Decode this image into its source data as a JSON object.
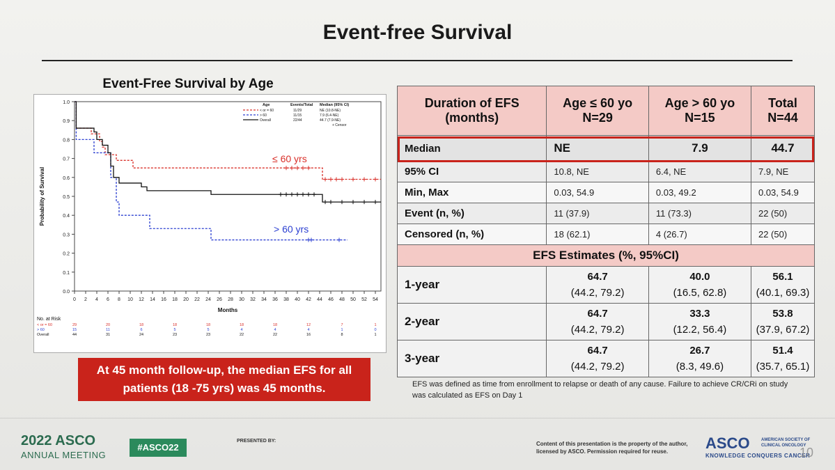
{
  "slide": {
    "title": "Event-free Survival",
    "chart_title": "Event-Free Survival by Age",
    "callout": "At 45 month follow-up, the median EFS for all patients (18 -75 yrs) was 45 months.",
    "footnote": "EFS was defined as time from enrollment to relapse or death of any cause. Failure to achieve CR/CRi on study was calculated as EFS on Day 1"
  },
  "table": {
    "headers": [
      "Duration of EFS (months)",
      "Age ≤ 60 yo N=29",
      "Age > 60 yo N=15",
      "Total N=44"
    ],
    "median": {
      "label": "Median",
      "v1": "NE",
      "v2": "7.9",
      "v3": "44.7"
    },
    "rows": [
      {
        "label": "95% CI",
        "v1": "10.8, NE",
        "v2": "6.4, NE",
        "v3": "7.9, NE"
      },
      {
        "label": "Min, Max",
        "v1": "0.03, 54.9",
        "v2": "0.03, 49.2",
        "v3": "0.03, 54.9"
      },
      {
        "label": "Event (n, %)",
        "v1": "11 (37.9)",
        "v2": "11 (73.3)",
        "v3": "22 (50)"
      },
      {
        "label": "Censored (n, %)",
        "v1": "18 (62.1)",
        "v2": "4 (26.7)",
        "v3": "22 (50)"
      }
    ],
    "estimates_header": "EFS Estimates (%, 95%CI)",
    "estimates": [
      {
        "label": "1-year",
        "v1": "64.7",
        "c1": "(44.2, 79.2)",
        "v2": "40.0",
        "c2": "(16.5, 62.8)",
        "v3": "56.1",
        "c3": "(40.1, 69.3)"
      },
      {
        "label": "2-year",
        "v1": "64.7",
        "c1": "(44.2, 79.2)",
        "v2": "33.3",
        "c2": "(12.2, 56.4)",
        "v3": "53.8",
        "c3": "(37.9, 67.2)"
      },
      {
        "label": "3-year",
        "v1": "64.7",
        "c1": "(44.2, 79.2)",
        "v2": "26.7",
        "c2": "(8.3, 49.6)",
        "v3": "51.4",
        "c3": "(35.7, 65.1)"
      }
    ]
  },
  "footer": {
    "year": "2022 ASCO",
    "meeting": "ANNUAL MEETING",
    "hashtag": "#ASCO22",
    "presented_by": "PRESENTED BY:",
    "content_note": "Content of this presentation is the property of the author, licensed by ASCO. Permission required for reuse.",
    "logo": "ASCO",
    "society": "AMERICAN SOCIETY OF CLINICAL ONCOLOGY",
    "tagline": "KNOWLEDGE CONQUERS CANCER",
    "page": "10"
  },
  "chart_data": {
    "type": "line",
    "title": "Event-Free Survival by Age",
    "xlabel": "Months",
    "ylabel": "Probability of Survival",
    "xlim": [
      0,
      55
    ],
    "ylim": [
      0,
      1
    ],
    "x_ticks": [
      "0",
      "2",
      "4",
      "6",
      "8",
      "10",
      "12",
      "14",
      "16",
      "18",
      "20",
      "22",
      "24",
      "26",
      "28",
      "30",
      "32",
      "34",
      "36",
      "38",
      "40",
      "42",
      "44",
      "46",
      "48",
      "50",
      "52",
      "54"
    ],
    "y_ticks": [
      "0.0",
      "0.1",
      "0.2",
      "0.3",
      "0.4",
      "0.5",
      "0.6",
      "0.7",
      "0.8",
      "0.9",
      "1.0"
    ],
    "legend": {
      "headers": [
        "Age",
        "Events/Total",
        "Median (95% CI)"
      ],
      "entries": [
        {
          "name": "< or = 60",
          "events": "11/29",
          "median": "NE (10.8-NE)",
          "color": "#d9302a"
        },
        {
          "name": "> 60",
          "events": "11/15",
          "median": "7.9 (6.4-NE)",
          "color": "#2b3fd1"
        },
        {
          "name": "Overall",
          "events": "22/44",
          "median": "44.7 (7.9-NE)",
          "color": "#111111"
        }
      ],
      "censor": "+ Censor"
    },
    "annotations": [
      "≤ 60 yrs",
      "> 60 yrs"
    ],
    "series": [
      {
        "name": "< or = 60",
        "color": "#d9302a",
        "dash": true,
        "points": [
          [
            0,
            1.0
          ],
          [
            0.3,
            0.86
          ],
          [
            2,
            0.86
          ],
          [
            3,
            0.83
          ],
          [
            4,
            0.83
          ],
          [
            4.5,
            0.79
          ],
          [
            5,
            0.76
          ],
          [
            5.5,
            0.72
          ],
          [
            7,
            0.72
          ],
          [
            7.5,
            0.69
          ],
          [
            10,
            0.69
          ],
          [
            10.5,
            0.65
          ],
          [
            44,
            0.65
          ],
          [
            44.5,
            0.59
          ],
          [
            55,
            0.59
          ]
        ],
        "censors": [
          [
            38,
            0.65
          ],
          [
            39,
            0.65
          ],
          [
            40,
            0.65
          ],
          [
            41,
            0.65
          ],
          [
            42,
            0.65
          ],
          [
            45,
            0.59
          ],
          [
            46,
            0.59
          ],
          [
            47,
            0.59
          ],
          [
            48,
            0.59
          ],
          [
            50,
            0.59
          ],
          [
            52,
            0.59
          ],
          [
            54,
            0.59
          ]
        ]
      },
      {
        "name": "> 60",
        "color": "#2b3fd1",
        "dash": true,
        "points": [
          [
            0,
            1.0
          ],
          [
            0.3,
            0.8
          ],
          [
            3,
            0.8
          ],
          [
            3.5,
            0.73
          ],
          [
            6,
            0.73
          ],
          [
            6.5,
            0.6
          ],
          [
            7.5,
            0.47
          ],
          [
            8,
            0.4
          ],
          [
            13,
            0.4
          ],
          [
            13.5,
            0.33
          ],
          [
            24,
            0.33
          ],
          [
            24.5,
            0.27
          ],
          [
            49,
            0.27
          ]
        ],
        "censors": [
          [
            42,
            0.27
          ],
          [
            42.5,
            0.27
          ],
          [
            47.5,
            0.27
          ]
        ]
      },
      {
        "name": "Overall",
        "color": "#111111",
        "dash": false,
        "points": [
          [
            0,
            1.0
          ],
          [
            0.3,
            0.86
          ],
          [
            3,
            0.86
          ],
          [
            3.5,
            0.84
          ],
          [
            4,
            0.8
          ],
          [
            5,
            0.77
          ],
          [
            6,
            0.73
          ],
          [
            6.5,
            0.66
          ],
          [
            7,
            0.6
          ],
          [
            8,
            0.57
          ],
          [
            12,
            0.55
          ],
          [
            13,
            0.53
          ],
          [
            24,
            0.53
          ],
          [
            24.5,
            0.51
          ],
          [
            44,
            0.51
          ],
          [
            44.5,
            0.47
          ],
          [
            55,
            0.47
          ]
        ],
        "censors": [
          [
            37,
            0.51
          ],
          [
            38,
            0.51
          ],
          [
            39,
            0.51
          ],
          [
            40,
            0.51
          ],
          [
            41,
            0.51
          ],
          [
            42,
            0.51
          ],
          [
            43,
            0.51
          ],
          [
            45,
            0.47
          ],
          [
            46,
            0.47
          ],
          [
            48,
            0.47
          ],
          [
            50,
            0.47
          ],
          [
            52,
            0.47
          ],
          [
            54,
            0.47
          ]
        ]
      }
    ],
    "risk_table": {
      "label": "No. at Risk",
      "rows": [
        {
          "name": "< or = 60",
          "color": "#d9302a",
          "values": [
            "29",
            "20",
            "18",
            "18",
            "18",
            "18",
            "18",
            "12",
            "7",
            "1"
          ]
        },
        {
          "name": "> 60",
          "color": "#2b3fd1",
          "values": [
            "15",
            "11",
            "6",
            "5",
            "5",
            "4",
            "4",
            "4",
            "1",
            "0"
          ]
        },
        {
          "name": "Overall",
          "color": "#111111",
          "values": [
            "44",
            "31",
            "24",
            "23",
            "23",
            "22",
            "22",
            "16",
            "8",
            "1"
          ]
        }
      ],
      "months": [
        0,
        6,
        12,
        18,
        24,
        30,
        36,
        42,
        48,
        54
      ]
    }
  }
}
